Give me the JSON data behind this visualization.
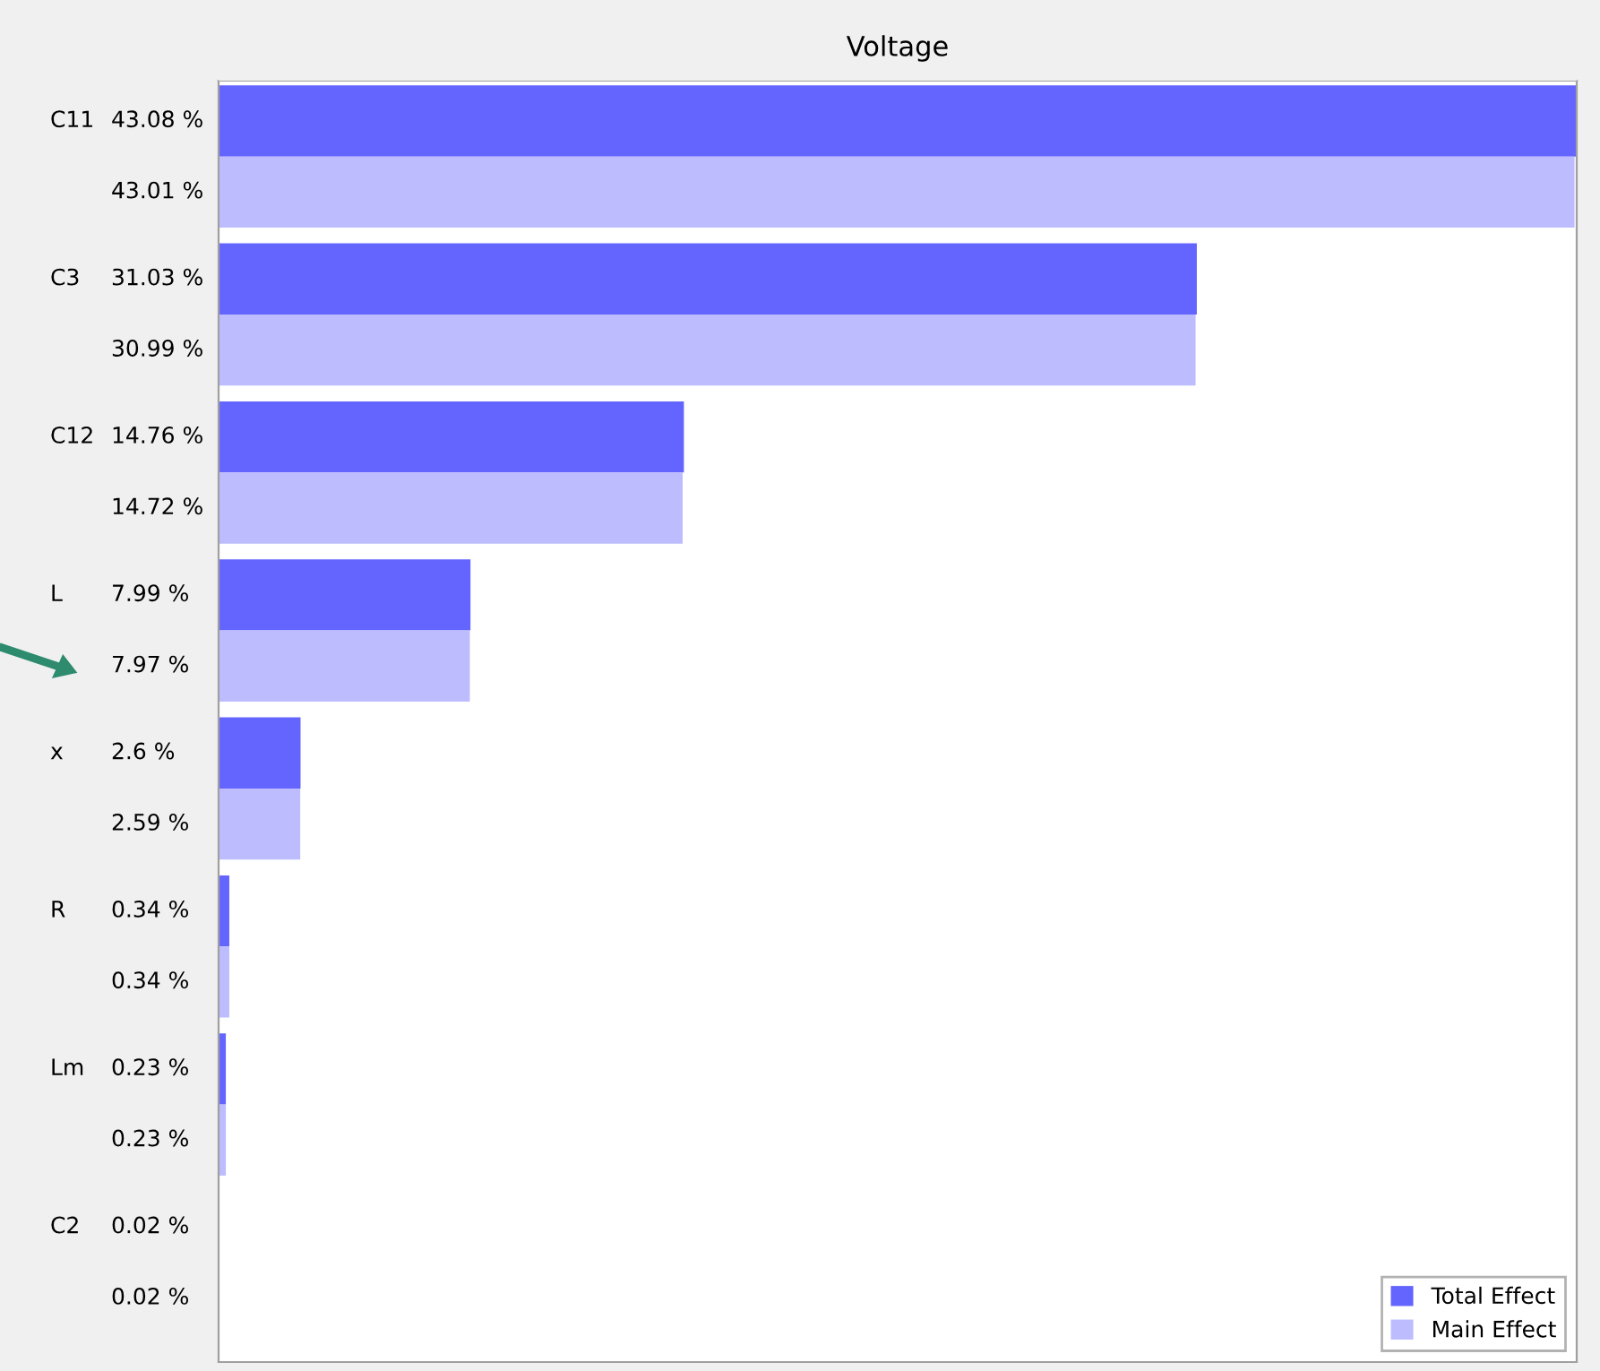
{
  "chart_data": {
    "type": "bar",
    "orientation": "horizontal",
    "title": "Voltage",
    "categories": [
      "C11",
      "C3",
      "C12",
      "L",
      "x",
      "R",
      "Lm",
      "C2"
    ],
    "series": [
      {
        "name": "Total Effect",
        "color": "#6464ff",
        "values": [
          43.08,
          31.03,
          14.76,
          7.99,
          2.6,
          0.34,
          0.23,
          0.02
        ],
        "value_labels": [
          "43.08 %",
          "31.03 %",
          "14.76 %",
          "7.99 %",
          "2.6 %",
          "0.34 %",
          "0.23 %",
          "0.02 %"
        ]
      },
      {
        "name": "Main Effect",
        "color": "#bcbcff",
        "values": [
          43.01,
          30.99,
          14.72,
          7.97,
          2.59,
          0.34,
          0.23,
          0.02
        ],
        "value_labels": [
          "43.01 %",
          "30.99 %",
          "14.72 %",
          "7.97 %",
          "2.59 %",
          "0.34 %",
          "0.23 %",
          "0.02 %"
        ]
      }
    ],
    "legend": "bottom right"
  }
}
